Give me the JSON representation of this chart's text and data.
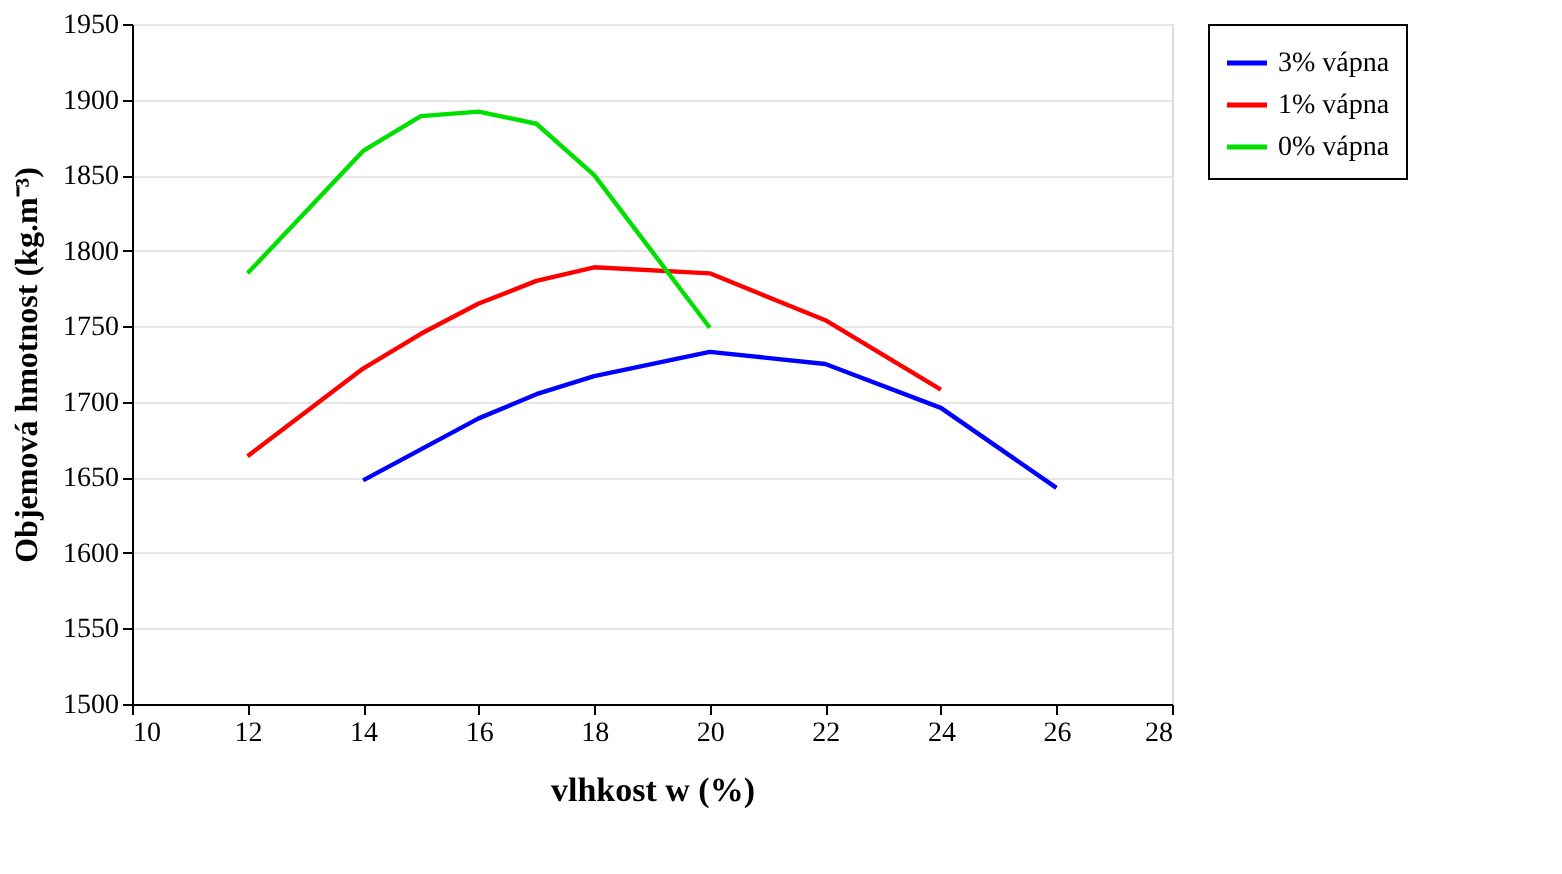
{
  "chart_data": {
    "type": "line",
    "xlabel": "vlhkost w (%)",
    "ylabel": "Objemová hmotnost (kg.m⁻³)",
    "xlim": [
      10,
      28
    ],
    "xticks": [
      10,
      12,
      14,
      16,
      18,
      20,
      22,
      24,
      26,
      28
    ],
    "ylim": [
      1500,
      1950
    ],
    "yticks": [
      1500,
      1550,
      1600,
      1650,
      1700,
      1750,
      1800,
      1850,
      1900,
      1950
    ],
    "grid": "y",
    "legend": "right",
    "marker": "none",
    "line_style": "solid",
    "series": [
      {
        "name": "3% vápna",
        "color": "#0000ff",
        "x": [
          14,
          16,
          17,
          18,
          20,
          22,
          24,
          26
        ],
        "values": [
          1648,
          1689,
          1705,
          1717,
          1733,
          1725,
          1696,
          1643
        ]
      },
      {
        "name": "1% vápna",
        "color": "#ff0000",
        "x": [
          12,
          14,
          15,
          16,
          17,
          18,
          20,
          22,
          24
        ],
        "values": [
          1664,
          1722,
          1745,
          1765,
          1780,
          1789,
          1785,
          1754,
          1708
        ]
      },
      {
        "name": "0% vápna",
        "color": "#00e000",
        "x": [
          12,
          14,
          15,
          16,
          17,
          18,
          20
        ],
        "values": [
          1785,
          1866,
          1889,
          1892,
          1884,
          1850,
          1749
        ]
      }
    ]
  }
}
